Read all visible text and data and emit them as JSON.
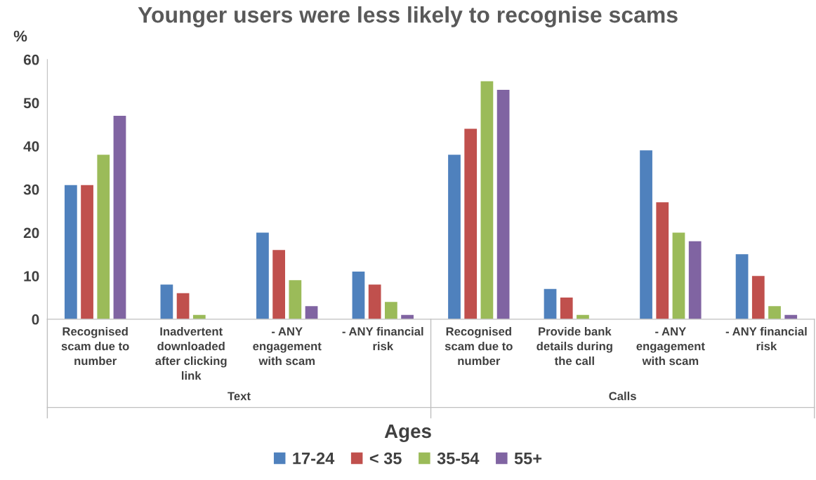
{
  "chart_data": {
    "type": "bar",
    "title": "Younger users were less likely to recognise scams",
    "ylabel": "%",
    "xlabel": "Ages",
    "categories": [
      "Recognised\nscam due to\nnumber",
      "Inadvertent\ndownloaded\nafter clicking\nlink",
      "- ANY\nengagement\nwith scam",
      "- ANY financial\nrisk",
      "Recognised\nscam due to\nnumber",
      "Provide bank\ndetails during\nthe call",
      "- ANY\nengagement\nwith scam",
      "- ANY financial\nrisk"
    ],
    "annotations": [
      "Text",
      "Calls"
    ],
    "series": [
      {
        "name": "17-24",
        "color": "#4f81bd",
        "values": [
          31,
          8,
          20,
          11,
          38,
          7,
          39,
          15
        ]
      },
      {
        "name": "< 35",
        "color": "#c0504d",
        "values": [
          31,
          6,
          16,
          8,
          44,
          5,
          27,
          10
        ]
      },
      {
        "name": "35-54",
        "color": "#9bbb59",
        "values": [
          38,
          1,
          9,
          4,
          55,
          1,
          20,
          3
        ]
      },
      {
        "name": "55+",
        "color": "#8064a2",
        "values": [
          47,
          null,
          3,
          1,
          53,
          null,
          18,
          1
        ]
      }
    ],
    "ylim": [
      0,
      60
    ],
    "yticks": [
      0,
      10,
      20,
      30,
      40,
      50,
      60
    ],
    "grid": false,
    "legend": "bottom"
  }
}
